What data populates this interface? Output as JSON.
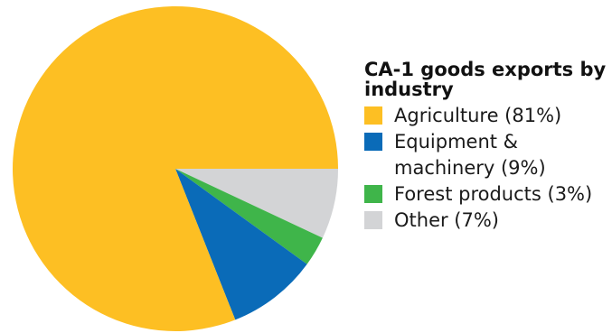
{
  "chart_data": {
    "type": "pie",
    "title": "CA-1 goods exports by industry",
    "categories": [
      "Agriculture",
      "Equipment & machinery",
      "Forest products",
      "Other"
    ],
    "values": [
      81,
      9,
      3,
      7
    ],
    "unit": "%",
    "colors": [
      "#FDBF23",
      "#0A6BB8",
      "#3FB54A",
      "#D3D4D6"
    ],
    "legend_labels": [
      "Agriculture (81%)",
      "Equipment & machinery (9%)",
      "Forest products (3%)",
      "Other (7%)"
    ],
    "legend_position": "right",
    "start_direction": "east",
    "direction": "counterclockwise-from-east-with-agriculture-first"
  }
}
